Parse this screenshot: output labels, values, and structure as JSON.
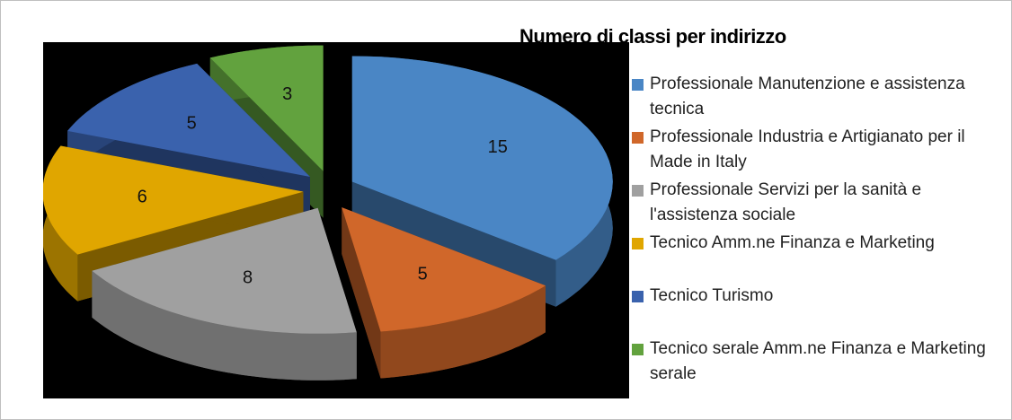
{
  "chart_data": {
    "type": "pie",
    "title": "Numero di classi per indirizzo",
    "categories": [
      "Professionale Manutenzione e assistenza tecnica",
      "Professionale Industria e Artigianato per il Made in Italy",
      "Professionale Servizi per la sanità e l'assistenza sociale",
      "Tecnico Amm.ne Finanza e Marketing",
      "Tecnico Turismo",
      "Tecnico serale Amm.ne Finanza e Marketing serale"
    ],
    "values": [
      15,
      5,
      8,
      6,
      5,
      3
    ],
    "colors": [
      "#4a86c5",
      "#d0672a",
      "#a0a0a0",
      "#e0a600",
      "#3a62ad",
      "#62a23e"
    ],
    "legend": "right"
  }
}
